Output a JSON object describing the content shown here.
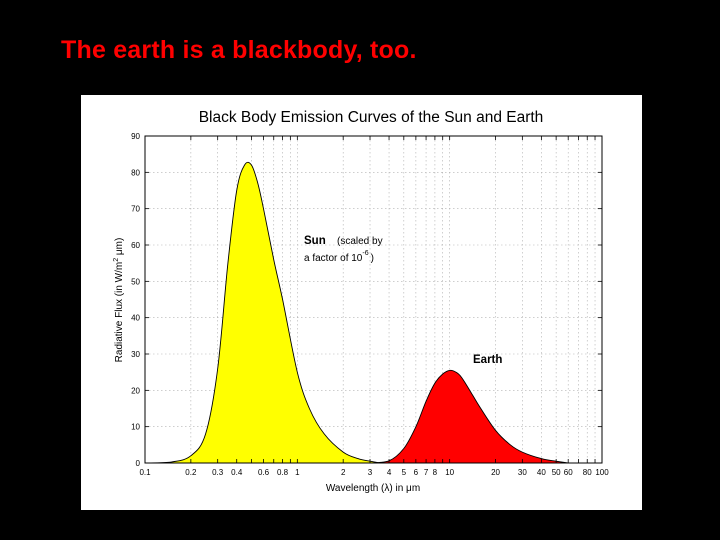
{
  "slide": {
    "title": "The earth is a blackbody, too."
  },
  "colors": {
    "background": "#000000",
    "title": "#ff0000",
    "sun_fill": "#ffff00",
    "earth_fill": "#ff0000",
    "grid": "#b0b0b0"
  },
  "chart_data": {
    "type": "area",
    "title": "Black Body Emission Curves of the Sun and Earth",
    "xlabel": "Wavelength (λ) in μm",
    "ylabel_parts": {
      "main": "Radiative Flux (in W/m",
      "sup": "2",
      "end": " μm)"
    },
    "x_scale": "log",
    "xlim": [
      0.1,
      100
    ],
    "ylim": [
      0,
      90
    ],
    "grid": true,
    "x_tick_labels": [
      {
        "v": 0.1,
        "t": "0.1"
      },
      {
        "v": 0.2,
        "t": "0.2"
      },
      {
        "v": 0.3,
        "t": "0.3"
      },
      {
        "v": 0.4,
        "t": "0.4"
      },
      {
        "v": 0.6,
        "t": "0.6"
      },
      {
        "v": 0.8,
        "t": "0.8"
      },
      {
        "v": 1,
        "t": "1"
      },
      {
        "v": 2,
        "t": "2"
      },
      {
        "v": 3,
        "t": "3"
      },
      {
        "v": 4,
        "t": "4"
      },
      {
        "v": 5,
        "t": "5"
      },
      {
        "v": 6,
        "t": "6"
      },
      {
        "v": 7,
        "t": "7"
      },
      {
        "v": 8,
        "t": "8"
      },
      {
        "v": 10,
        "t": "10"
      },
      {
        "v": 20,
        "t": "20"
      },
      {
        "v": 30,
        "t": "30"
      },
      {
        "v": 40,
        "t": "40"
      },
      {
        "v": 50,
        "t": "50"
      },
      {
        "v": 60,
        "t": "60"
      },
      {
        "v": 80,
        "t": "80"
      },
      {
        "v": 100,
        "t": "100"
      }
    ],
    "x_grid": [
      0.1,
      0.2,
      0.3,
      0.4,
      0.5,
      0.6,
      0.7,
      0.8,
      0.9,
      1,
      2,
      3,
      4,
      5,
      6,
      7,
      8,
      9,
      10,
      20,
      30,
      40,
      50,
      60,
      70,
      80,
      90,
      100
    ],
    "y_ticks": [
      0,
      10,
      20,
      30,
      40,
      50,
      60,
      70,
      80,
      90
    ],
    "series": [
      {
        "name": "Sun",
        "fill": "#ffff00",
        "x": [
          0.1,
          0.15,
          0.2,
          0.25,
          0.3,
          0.35,
          0.4,
          0.45,
          0.5,
          0.55,
          0.6,
          0.7,
          0.8,
          1.0,
          1.2,
          1.5,
          2.0,
          2.5,
          3.0,
          3.5
        ],
        "y": [
          0,
          0.3,
          2,
          8,
          26,
          55,
          75,
          82,
          82,
          77,
          70,
          56,
          45,
          25,
          15,
          8,
          3,
          1.2,
          0.5,
          0
        ]
      },
      {
        "name": "Earth",
        "fill": "#ff0000",
        "x": [
          3.0,
          4.0,
          5.0,
          6.0,
          7.0,
          8.0,
          9.0,
          10.0,
          11.0,
          12.0,
          14.0,
          16.0,
          20.0,
          25.0,
          30.0,
          40.0,
          50.0,
          60.0
        ],
        "y": [
          0,
          0.6,
          4,
          10,
          17,
          22,
          24.5,
          25.5,
          25,
          23.5,
          19,
          15,
          9,
          5,
          3,
          1.2,
          0.5,
          0
        ]
      }
    ],
    "annotations": {
      "sun_label": "Sun",
      "sun_note_1": "(scaled by",
      "sun_note_2": "a factor of 10",
      "sun_note_exp": "-6",
      "sun_note_close": ")",
      "earth_label": "Earth"
    }
  }
}
